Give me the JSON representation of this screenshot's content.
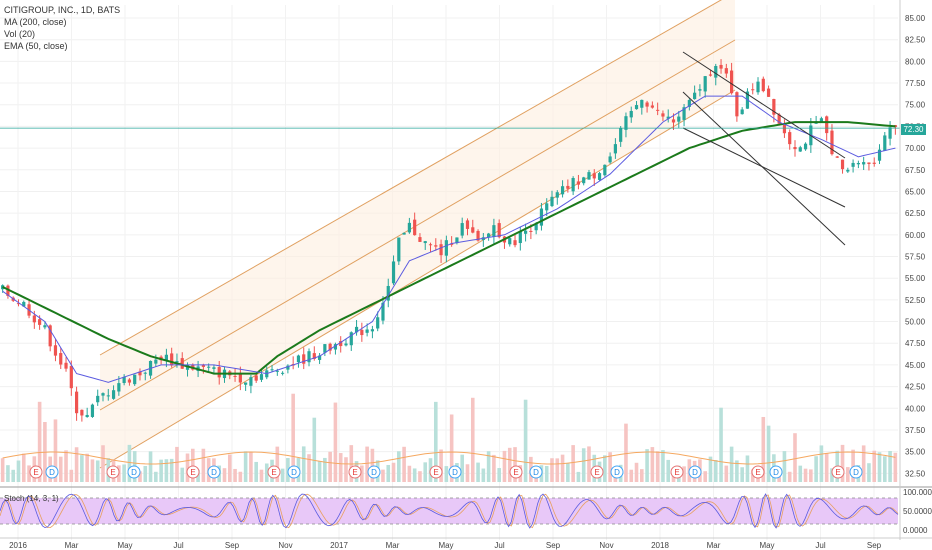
{
  "legend": {
    "title": "CITIGROUP, INC., 1D, BATS",
    "ma": "MA (200, close)",
    "vol": "Vol (20)",
    "ema": "EMA (50, close)"
  },
  "stoch_label": "Stoch (14, 3, 1)",
  "last_price_label": "72.30",
  "colors": {
    "up": "#26a69a",
    "down": "#ef5350",
    "ma200": "#1b7a1b",
    "ema": "#5b5be0",
    "channel": "#e0a060",
    "downchannel": "#333333",
    "stoch_fill": "#e8c8f8"
  },
  "chart_data": {
    "type": "candlestick",
    "y_ticks": [
      "85.00",
      "82.50",
      "80.00",
      "77.50",
      "75.00",
      "72.50",
      "70.00",
      "67.50",
      "65.00",
      "62.50",
      "60.00",
      "57.50",
      "55.00",
      "52.50",
      "50.00",
      "47.50",
      "45.00",
      "42.50",
      "40.00",
      "37.50",
      "35.00",
      "32.50"
    ],
    "ylim": [
      31.5,
      86.5
    ],
    "x_ticks": [
      "2016",
      "Mar",
      "May",
      "Jul",
      "Sep",
      "Nov",
      "2017",
      "Mar",
      "May",
      "Jul",
      "Sep",
      "Nov",
      "2018",
      "Mar",
      "May",
      "Jul",
      "Sep"
    ],
    "stoch_ticks": [
      "100.0000",
      "50.0000",
      "0.0000"
    ],
    "last_price": 72.3,
    "price_path": [
      [
        0,
        53.5
      ],
      [
        4,
        52
      ],
      [
        8,
        49
      ],
      [
        12,
        44
      ],
      [
        14,
        40
      ],
      [
        16,
        39
      ],
      [
        18,
        41
      ],
      [
        22,
        43
      ],
      [
        26,
        44
      ],
      [
        30,
        46
      ],
      [
        34,
        45
      ],
      [
        38,
        44.5
      ],
      [
        42,
        44
      ],
      [
        46,
        43.5
      ],
      [
        50,
        44
      ],
      [
        54,
        45
      ],
      [
        58,
        46
      ],
      [
        62,
        47
      ],
      [
        66,
        48.5
      ],
      [
        70,
        49.5
      ],
      [
        73,
        54
      ],
      [
        75,
        59
      ],
      [
        77,
        61
      ],
      [
        80,
        59
      ],
      [
        83,
        58
      ],
      [
        87,
        61
      ],
      [
        90,
        59
      ],
      [
        93,
        61
      ],
      [
        96,
        59
      ],
      [
        100,
        61
      ],
      [
        104,
        64
      ],
      [
        108,
        66
      ],
      [
        112,
        67
      ],
      [
        115,
        69
      ],
      [
        118,
        73
      ],
      [
        121,
        76
      ],
      [
        124,
        74
      ],
      [
        127,
        73
      ],
      [
        130,
        75
      ],
      [
        133,
        78
      ],
      [
        135,
        80
      ],
      [
        137,
        78
      ],
      [
        139,
        74
      ],
      [
        141,
        76
      ],
      [
        143,
        78
      ],
      [
        145,
        76
      ],
      [
        147,
        73
      ],
      [
        149,
        71
      ],
      [
        151,
        70
      ],
      [
        153,
        72
      ],
      [
        155,
        73
      ],
      [
        157,
        70
      ],
      [
        159,
        67
      ],
      [
        161,
        68
      ],
      [
        163,
        69
      ],
      [
        165,
        68
      ],
      [
        167,
        72
      ],
      [
        169,
        73
      ]
    ],
    "ma200_path": [
      [
        0,
        54
      ],
      [
        10,
        51
      ],
      [
        20,
        48
      ],
      [
        28,
        46
      ],
      [
        34,
        45
      ],
      [
        40,
        44
      ],
      [
        44,
        44
      ],
      [
        48,
        44
      ],
      [
        52,
        46
      ],
      [
        60,
        49
      ],
      [
        70,
        52
      ],
      [
        80,
        55
      ],
      [
        90,
        58
      ],
      [
        100,
        61
      ],
      [
        110,
        64
      ],
      [
        120,
        67
      ],
      [
        130,
        70
      ],
      [
        140,
        72
      ],
      [
        150,
        73
      ],
      [
        160,
        73
      ],
      [
        169,
        72.5
      ]
    ],
    "ema_path": [
      [
        0,
        53.5
      ],
      [
        8,
        50
      ],
      [
        14,
        44
      ],
      [
        20,
        43
      ],
      [
        30,
        45
      ],
      [
        40,
        45
      ],
      [
        50,
        44
      ],
      [
        60,
        46
      ],
      [
        70,
        50
      ],
      [
        77,
        57
      ],
      [
        85,
        59
      ],
      [
        95,
        60
      ],
      [
        105,
        63
      ],
      [
        115,
        67
      ],
      [
        125,
        73
      ],
      [
        133,
        76
      ],
      [
        140,
        76
      ],
      [
        147,
        73
      ],
      [
        155,
        71
      ],
      [
        162,
        69
      ],
      [
        169,
        70
      ]
    ],
    "volume_avg": 40,
    "stoch_pattern": "oscillating 0-100"
  }
}
